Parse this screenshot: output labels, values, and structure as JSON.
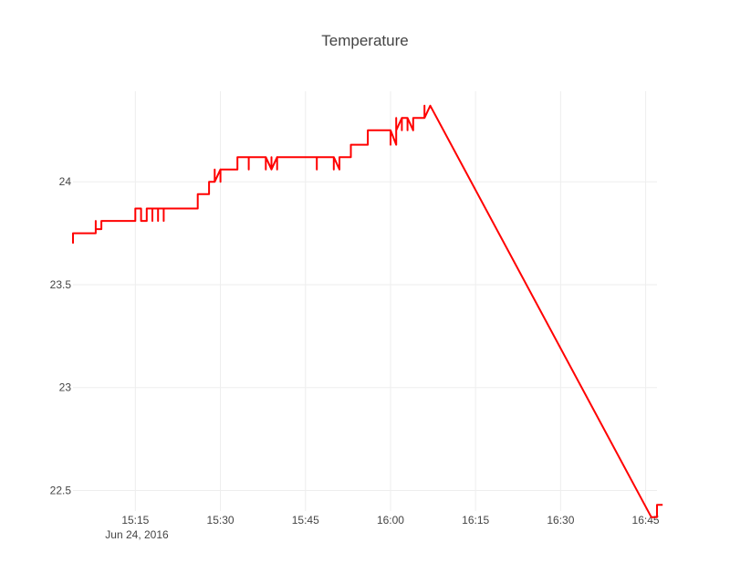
{
  "chart_data": {
    "type": "line",
    "title": "Temperature",
    "xlabel": "",
    "ylabel": "",
    "x_date_label": "Jun 24, 2016",
    "x_ticks": [
      "15:15",
      "15:30",
      "15:45",
      "16:00",
      "16:15",
      "16:30",
      "16:45"
    ],
    "x_tick_minutes": [
      915,
      930,
      945,
      960,
      975,
      990,
      1005
    ],
    "y_ticks": [
      "22.5",
      "23",
      "23.5",
      "24"
    ],
    "y_tick_values": [
      22.5,
      23,
      23.5,
      24
    ],
    "xlim": [
      "15:04",
      "16:47"
    ],
    "ylim": [
      22.4,
      24.44
    ],
    "grid": true,
    "line_color": "#ff0000",
    "series": [
      {
        "x": [
          "15:04",
          "15:04",
          "15:04",
          "15:08",
          "15:08",
          "15:08",
          "15:08",
          "15:09",
          "15:09",
          "15:09",
          "15:10",
          "15:15",
          "15:15",
          "15:15",
          "15:15",
          "15:16",
          "15:16",
          "15:17",
          "15:17",
          "15:17",
          "15:18",
          "15:18",
          "15:18",
          "15:18",
          "15:19",
          "15:19",
          "15:19",
          "15:19",
          "15:20",
          "15:20",
          "15:20",
          "15:26",
          "15:26",
          "15:28",
          "15:28",
          "15:28",
          "15:28",
          "15:28",
          "15:29",
          "15:29",
          "15:29",
          "15:29",
          "15:29",
          "15:30",
          "15:30",
          "15:30",
          "15:33",
          "15:33",
          "15:35",
          "15:35",
          "15:35",
          "15:35",
          "15:35",
          "15:35",
          "15:36",
          "15:38",
          "15:38",
          "15:38",
          "15:39",
          "15:39",
          "15:39",
          "15:39",
          "15:39",
          "15:40",
          "15:40",
          "15:40",
          "15:40",
          "15:47",
          "15:47",
          "15:47",
          "15:47",
          "15:50",
          "15:50",
          "15:50",
          "15:51",
          "15:51",
          "15:51",
          "15:51",
          "15:51",
          "15:51",
          "15:53",
          "15:53",
          "15:53",
          "15:56",
          "15:56",
          "16:00",
          "16:00",
          "16:00",
          "16:00",
          "16:00",
          "16:01",
          "16:01",
          "16:01",
          "16:01",
          "16:02",
          "16:02",
          "16:02",
          "16:03",
          "16:03",
          "16:03",
          "16:04",
          "16:04",
          "16:06",
          "16:06",
          "16:06",
          "16:07",
          "16:46",
          "16:47",
          "16:47",
          "16:48"
        ],
        "y": [
          23.7,
          23.75,
          23.75,
          23.75,
          23.77,
          23.81,
          23.77,
          23.77,
          23.81,
          23.81,
          23.81,
          23.81,
          23.87,
          23.81,
          23.87,
          23.87,
          23.81,
          23.81,
          23.81,
          23.87,
          23.87,
          23.81,
          23.87,
          23.87,
          23.87,
          23.81,
          23.87,
          23.87,
          23.87,
          23.81,
          23.87,
          23.87,
          23.94,
          23.94,
          24.0,
          23.94,
          24.0,
          24.0,
          24.0,
          24.06,
          24.0,
          24.06,
          24.0,
          24.06,
          24.0,
          24.06,
          24.06,
          24.12,
          24.12,
          24.06,
          24.12,
          24.06,
          24.12,
          24.12,
          24.12,
          24.12,
          24.06,
          24.12,
          24.06,
          24.12,
          24.06,
          24.12,
          24.06,
          24.12,
          24.06,
          24.12,
          24.12,
          24.12,
          24.06,
          24.12,
          24.12,
          24.12,
          24.06,
          24.12,
          24.06,
          24.12,
          24.06,
          24.12,
          24.12,
          24.12,
          24.12,
          24.18,
          24.18,
          24.18,
          24.25,
          24.25,
          24.18,
          24.25,
          24.18,
          24.25,
          24.18,
          24.25,
          24.31,
          24.25,
          24.31,
          24.25,
          24.31,
          24.31,
          24.25,
          24.31,
          24.25,
          24.31,
          24.31,
          24.37,
          24.31,
          24.37,
          22.37,
          22.37,
          22.43,
          22.43
        ]
      }
    ]
  }
}
